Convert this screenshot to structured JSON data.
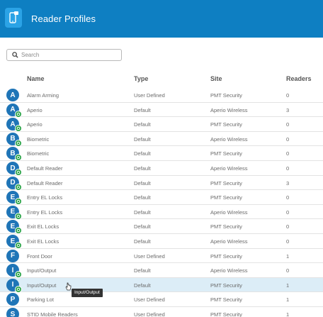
{
  "header": {
    "title": "Reader Profiles"
  },
  "search": {
    "placeholder": "Search",
    "value": ""
  },
  "columns": {
    "name": "Name",
    "type": "Type",
    "site": "Site",
    "readers": "Readers"
  },
  "rows": [
    {
      "initial": "A",
      "name": "Alarm Arming",
      "type": "User Defined",
      "site": "PMT Security",
      "readers": "0",
      "badge": false,
      "selected": false
    },
    {
      "initial": "A",
      "name": "Aperio",
      "type": "Default",
      "site": "Aperio Wireless",
      "readers": "3",
      "badge": true,
      "selected": false
    },
    {
      "initial": "A",
      "name": "Aperio",
      "type": "Default",
      "site": "PMT Security",
      "readers": "0",
      "badge": true,
      "selected": false
    },
    {
      "initial": "B",
      "name": "Biometric",
      "type": "Default",
      "site": "Aperio Wireless",
      "readers": "0",
      "badge": true,
      "selected": false
    },
    {
      "initial": "B",
      "name": "Biometric",
      "type": "Default",
      "site": "PMT Security",
      "readers": "0",
      "badge": true,
      "selected": false
    },
    {
      "initial": "D",
      "name": "Default Reader",
      "type": "Default",
      "site": "Aperio Wireless",
      "readers": "0",
      "badge": true,
      "selected": false
    },
    {
      "initial": "D",
      "name": "Default Reader",
      "type": "Default",
      "site": "PMT Security",
      "readers": "3",
      "badge": true,
      "selected": false
    },
    {
      "initial": "E",
      "name": "Entry EL Locks",
      "type": "Default",
      "site": "PMT Security",
      "readers": "0",
      "badge": true,
      "selected": false
    },
    {
      "initial": "E",
      "name": "Entry EL Locks",
      "type": "Default",
      "site": "Aperio Wireless",
      "readers": "0",
      "badge": true,
      "selected": false
    },
    {
      "initial": "E",
      "name": "Exit EL Locks",
      "type": "Default",
      "site": "PMT Security",
      "readers": "0",
      "badge": true,
      "selected": false
    },
    {
      "initial": "E",
      "name": "Exit EL Locks",
      "type": "Default",
      "site": "Aperio Wireless",
      "readers": "0",
      "badge": true,
      "selected": false
    },
    {
      "initial": "F",
      "name": "Front Door",
      "type": "User Defined",
      "site": "PMT Security",
      "readers": "1",
      "badge": false,
      "selected": false
    },
    {
      "initial": "I",
      "name": "Input/Output",
      "type": "Default",
      "site": "Aperio Wireless",
      "readers": "0",
      "badge": true,
      "selected": false
    },
    {
      "initial": "I",
      "name": "Input/Output",
      "type": "Default",
      "site": "PMT Security",
      "readers": "1",
      "badge": true,
      "selected": true
    },
    {
      "initial": "P",
      "name": "Parking Lot",
      "type": "User Defined",
      "site": "PMT Security",
      "readers": "1",
      "badge": false,
      "selected": false
    },
    {
      "initial": "S",
      "name": "STID Mobile Readers",
      "type": "User Defined",
      "site": "PMT Security",
      "readers": "1",
      "badge": false,
      "selected": false
    }
  ],
  "tooltip": {
    "text": "Input/Output"
  },
  "colors": {
    "header": "#0e7fc2",
    "avatar": "#1f75b7",
    "badge": "#27a244",
    "selected_row": "#dcedf7"
  },
  "icons": {
    "app": "phone-reader-icon",
    "search": "search-icon",
    "badge": "default-badge-icon"
  }
}
